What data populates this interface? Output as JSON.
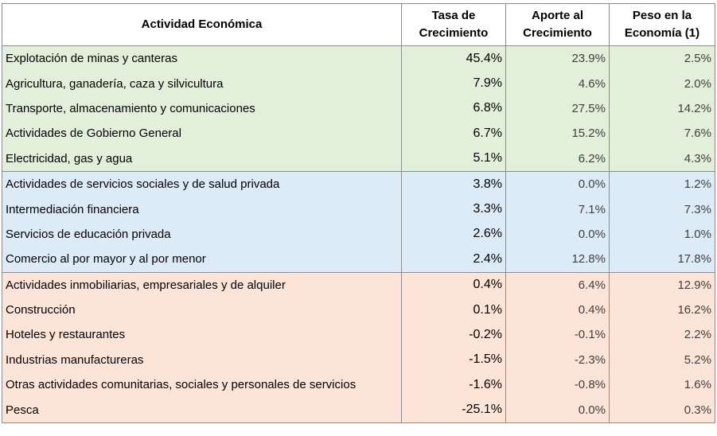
{
  "header": {
    "col1": "Actividad Económica",
    "col2_line1": "Tasa de",
    "col2_line2": "Crecimiento",
    "col3_line1": "Aporte al",
    "col3_line2": "Crecimiento",
    "col4_line1": "Peso en la",
    "col4_line2": "Economía (1)"
  },
  "colors": {
    "green": "#e2efda",
    "blue": "#ddebf7",
    "orange": "#fce4d6"
  },
  "rows": [
    {
      "name": "Explotación de minas y canteras",
      "rate": "45.4%",
      "contrib": "23.9%",
      "weight": "2.5%",
      "group": "green"
    },
    {
      "name": "Agricultura, ganadería, caza y silvicultura",
      "rate": "7.9%",
      "contrib": "4.6%",
      "weight": "2.0%",
      "group": "green"
    },
    {
      "name": "Transporte, almacenamiento y comunicaciones",
      "rate": "6.8%",
      "contrib": "27.5%",
      "weight": "14.2%",
      "group": "green"
    },
    {
      "name": "Actividades de Gobierno General",
      "rate": "6.7%",
      "contrib": "15.2%",
      "weight": "7.6%",
      "group": "green"
    },
    {
      "name": "Electricidad, gas y agua",
      "rate": "5.1%",
      "contrib": "6.2%",
      "weight": "4.3%",
      "group": "green"
    },
    {
      "name": "Actividades de servicios sociales y de salud privada",
      "rate": "3.8%",
      "contrib": "0.0%",
      "weight": "1.2%",
      "group": "blue"
    },
    {
      "name": "Intermediación financiera",
      "rate": "3.3%",
      "contrib": "7.1%",
      "weight": "7.3%",
      "group": "blue"
    },
    {
      "name": "Servicios de educación privada",
      "rate": "2.6%",
      "contrib": "0.0%",
      "weight": "1.0%",
      "group": "blue"
    },
    {
      "name": "Comercio al por mayor y al por menor",
      "rate": "2.4%",
      "contrib": "12.8%",
      "weight": "17.8%",
      "group": "blue"
    },
    {
      "name": "Actividades inmobiliarias, empresariales y de alquiler",
      "rate": "0.4%",
      "contrib": "6.4%",
      "weight": "12.9%",
      "group": "orange"
    },
    {
      "name": "Construcción",
      "rate": "0.1%",
      "contrib": "0.4%",
      "weight": "16.2%",
      "group": "orange"
    },
    {
      "name": "Hoteles y restaurantes",
      "rate": "-0.2%",
      "contrib": "-0.1%",
      "weight": "2.2%",
      "group": "orange"
    },
    {
      "name": "Industrias manufactureras",
      "rate": "-1.5%",
      "contrib": "-2.3%",
      "weight": "5.2%",
      "group": "orange"
    },
    {
      "name": "Otras actividades comunitarias, sociales y personales de servicios",
      "rate": "-1.6%",
      "contrib": "-0.8%",
      "weight": "1.6%",
      "group": "orange"
    },
    {
      "name": "Pesca",
      "rate": "-25.1%",
      "contrib": "0.0%",
      "weight": "0.3%",
      "group": "orange"
    }
  ]
}
